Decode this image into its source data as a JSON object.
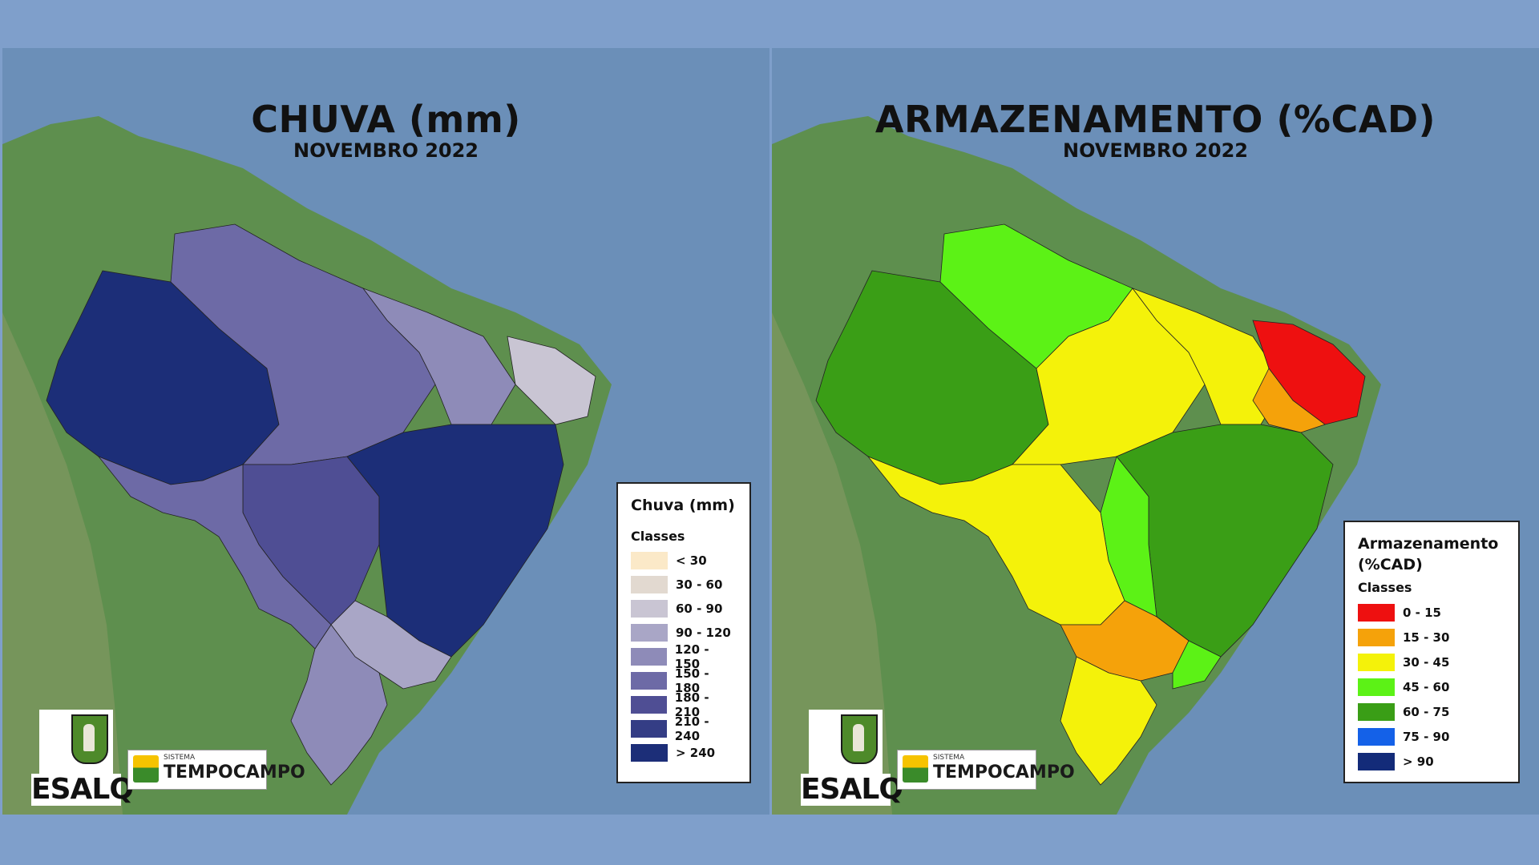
{
  "panels": [
    {
      "title": "CHUVA (mm)",
      "subtitle": "NOVEMBRO 2022",
      "legend": {
        "title": "Chuva (mm)",
        "subtitle": "Classes",
        "classes": [
          {
            "label": "< 30",
            "color": "#fbe9c8"
          },
          {
            "label": "30 - 60",
            "color": "#e2d9d0"
          },
          {
            "label": "60 - 90",
            "color": "#c9c5d3"
          },
          {
            "label": "90 - 120",
            "color": "#a9a6c6"
          },
          {
            "label": "120 - 150",
            "color": "#8e8bb8"
          },
          {
            "label": "150 - 180",
            "color": "#6d6aa6"
          },
          {
            "label": "180 - 210",
            "color": "#4f4e94"
          },
          {
            "label": "210 - 240",
            "color": "#343d85"
          },
          {
            "label": "> 240",
            "color": "#1c2e78"
          }
        ]
      }
    },
    {
      "title": "ARMAZENAMENTO (%CAD)",
      "subtitle": "NOVEMBRO 2022",
      "legend": {
        "title": "Armazenamento (%CAD)",
        "subtitle": "Classes",
        "classes": [
          {
            "label": "0 - 15",
            "color": "#ee1010"
          },
          {
            "label": "15 - 30",
            "color": "#f5a20a"
          },
          {
            "label": "30 - 45",
            "color": "#f4f20a"
          },
          {
            "label": "45 - 60",
            "color": "#5cf216"
          },
          {
            "label": "60 - 75",
            "color": "#3a9e16"
          },
          {
            "label": "75 - 90",
            "color": "#1461e8"
          },
          {
            "label": "> 90",
            "color": "#132b79"
          }
        ]
      }
    }
  ],
  "logos": {
    "esalq": "ESALQ",
    "tempo_small": "SISTEMA",
    "tempo_big": "TEMPOCAMPO"
  }
}
